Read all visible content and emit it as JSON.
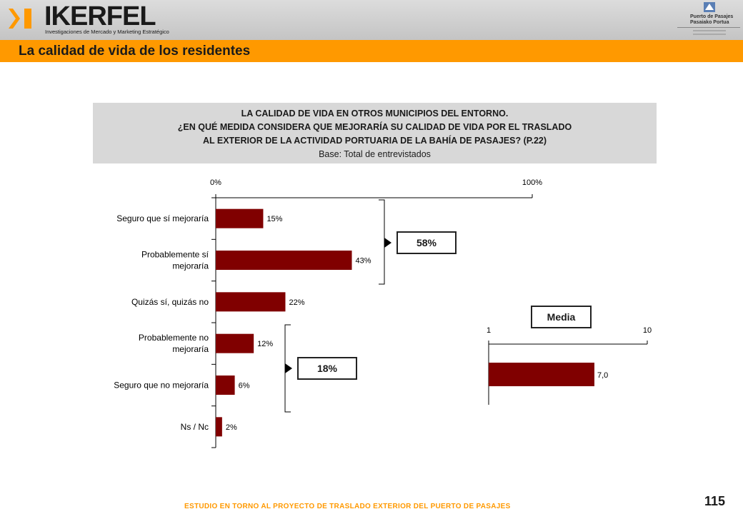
{
  "brand": {
    "name": "IKERFEL",
    "tagline": "Investigaciones de Mercado y Marketing Estratégico",
    "partner_line1": "Puerto de Pasajes",
    "partner_line2": "Pasaiako Portua",
    "accent_color": "#ff9900",
    "bar_color": "#800000"
  },
  "page": {
    "section_title": "La calidad de vida de los residentes",
    "footer": "ESTUDIO EN TORNO AL PROYECTO DE TRASLADO EXTERIOR DEL PUERTO DE PASAJES",
    "page_number": "115"
  },
  "question": {
    "line1": "LA CALIDAD DE VIDA EN OTROS MUNICIPIOS DEL ENTORNO.",
    "line2": "¿EN QUÉ MEDIDA CONSIDERA QUE MEJORARÍA SU CALIDAD DE VIDA POR EL TRASLADO",
    "line3": "AL EXTERIOR DE LA ACTIVIDAD PORTUARIA DE LA BAHÍA DE PASAJES? (P.22)",
    "base": "Base: Total de entrevistados"
  },
  "groups": {
    "positive_total": "58%",
    "negative_total": "18%",
    "media_label": "Media"
  },
  "chart_data": [
    {
      "type": "bar",
      "orientation": "horizontal",
      "categories": [
        [
          "Seguro que sí mejoraría"
        ],
        [
          "Probablemente sí",
          "mejoraría"
        ],
        [
          "Quizás sí, quizás no"
        ],
        [
          "Probablemente no",
          "mejoraría"
        ],
        [
          "Seguro que no mejoraría"
        ],
        [
          "Ns / Nc"
        ]
      ],
      "values": [
        15,
        43,
        22,
        12,
        6,
        2
      ],
      "value_labels": [
        "15%",
        "43%",
        "22%",
        "12%",
        "6%",
        "2%"
      ],
      "xlim": [
        0,
        100
      ],
      "tick_labels": [
        "0%",
        "100%"
      ]
    },
    {
      "type": "bar",
      "orientation": "horizontal",
      "title": "Media",
      "values": [
        7.0
      ],
      "value_labels": [
        "7,0"
      ],
      "xlim": [
        1,
        10
      ],
      "tick_labels": [
        "1",
        "10"
      ]
    }
  ]
}
